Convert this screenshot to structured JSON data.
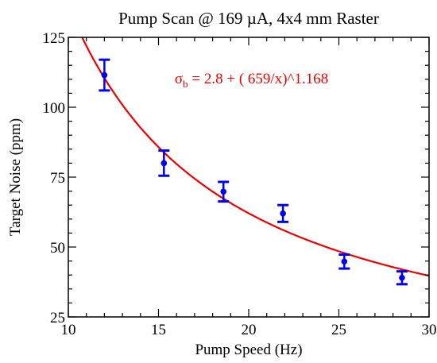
{
  "chart_data": {
    "type": "scatter",
    "title": "Pump Scan @ 169 µA, 4x4 mm Raster",
    "xlabel": "Pump Speed (Hz)",
    "ylabel": "Target Noise (ppm)",
    "xlim": [
      10,
      30
    ],
    "ylim": [
      25,
      125
    ],
    "xticks": [
      10,
      15,
      20,
      25,
      30
    ],
    "yticks": [
      25,
      50,
      75,
      100,
      125
    ],
    "x_tick_labels": [
      "10",
      "15",
      "20",
      "25",
      "30"
    ],
    "y_tick_labels": [
      "25",
      "50",
      "75",
      "100",
      "125"
    ],
    "grid": false,
    "series": [
      {
        "kind": "points-with-error-bars",
        "color": "#0000ee",
        "x": [
          12.0,
          15.3,
          18.6,
          21.9,
          25.3,
          28.5
        ],
        "y": [
          111.5,
          80.0,
          69.8,
          62.0,
          44.8,
          39.0
        ],
        "err": [
          5.5,
          4.5,
          3.5,
          3.0,
          2.5,
          2.3
        ]
      },
      {
        "kind": "fit-line",
        "color": "#ee0000",
        "equation": {
          "constant": 2.8,
          "scale": 659,
          "exponent": 1.168
        }
      }
    ],
    "annotations": [
      {
        "symbol": "σ",
        "subscript": "b",
        "text": " = 2.8 + ( 659/x)^1.168",
        "color": "#ee0000",
        "x": 15.9,
        "y": 108.5
      }
    ]
  }
}
